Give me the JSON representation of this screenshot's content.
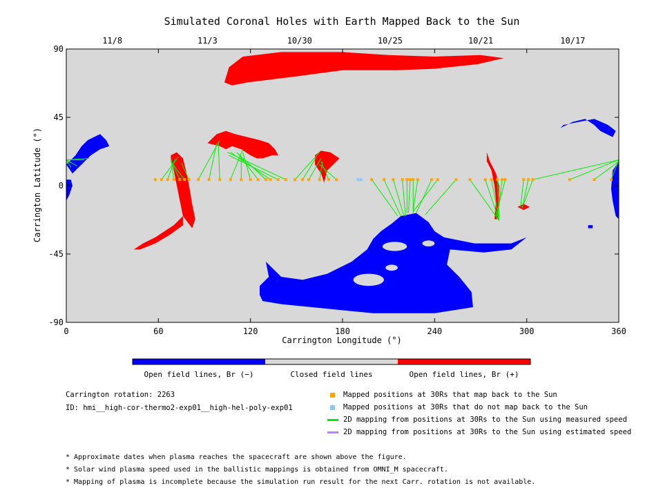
{
  "chart_data": {
    "type": "map",
    "title": "Simulated Coronal Holes with Earth Mapped Back to the Sun",
    "xlabel": "Carrington Longitude (°)",
    "ylabel": "Carrington Latitude (°)",
    "xlim": [
      0,
      360
    ],
    "ylim": [
      -90,
      90
    ],
    "x_ticks": [
      "0",
      "60",
      "120",
      "180",
      "240",
      "300",
      "360"
    ],
    "y_ticks": [
      "90",
      "45",
      "0",
      "-45",
      "-90"
    ],
    "top_dates": [
      {
        "lon": 30,
        "label": "11/8"
      },
      {
        "lon": 92,
        "label": "11/3"
      },
      {
        "lon": 152,
        "label": "10/30"
      },
      {
        "lon": 211,
        "label": "10/25"
      },
      {
        "lon": 270,
        "label": "10/21"
      },
      {
        "lon": 330,
        "label": "10/17"
      }
    ],
    "colorbar": [
      {
        "label": "Open field lines, Br (−)",
        "color": "#0000ff"
      },
      {
        "label": "Closed field lines",
        "color": "#d8d8d8"
      },
      {
        "label": "Open field lines, Br (+)",
        "color": "#ff0000"
      }
    ],
    "mapped_positions_30Rs": {
      "latitude": 4,
      "longitudes": [
        58,
        62,
        66,
        70,
        74,
        77,
        80,
        86,
        93,
        100,
        107,
        114,
        120,
        125,
        130,
        133,
        138,
        143,
        149,
        154,
        158,
        165,
        171,
        176,
        199,
        207,
        213,
        219,
        222,
        224,
        226,
        229,
        238,
        242,
        254,
        263,
        273,
        277,
        281,
        284,
        286,
        298,
        301,
        304,
        328,
        344,
        355
      ]
    },
    "unmapped_positions_30Rs": {
      "latitude": 4,
      "longitudes": [
        190,
        192
      ]
    },
    "mapping_lines": [
      [
        62,
        4,
        73,
        19
      ],
      [
        66,
        4,
        71,
        18
      ],
      [
        70,
        4,
        68,
        19
      ],
      [
        74,
        4,
        68,
        17
      ],
      [
        77,
        4,
        68,
        16
      ],
      [
        80,
        4,
        75,
        15
      ],
      [
        86,
        4,
        100,
        30
      ],
      [
        93,
        4,
        98,
        28
      ],
      [
        100,
        4,
        99,
        29
      ],
      [
        107,
        4,
        115,
        24
      ],
      [
        114,
        4,
        114,
        18
      ],
      [
        120,
        4,
        115,
        22
      ],
      [
        125,
        4,
        112,
        21
      ],
      [
        130,
        4,
        111,
        22
      ],
      [
        133,
        4,
        107,
        22
      ],
      [
        138,
        4,
        106,
        20
      ],
      [
        143,
        4,
        105,
        22
      ],
      [
        149,
        4,
        165,
        22
      ],
      [
        154,
        4,
        163,
        19
      ],
      [
        158,
        4,
        166,
        18
      ],
      [
        165,
        4,
        167,
        16
      ],
      [
        171,
        4,
        166,
        16
      ],
      [
        176,
        4,
        165,
        14
      ],
      [
        199,
        4,
        216,
        -20
      ],
      [
        207,
        4,
        218,
        -20
      ],
      [
        213,
        4,
        220,
        -20
      ],
      [
        219,
        4,
        221,
        -20
      ],
      [
        222,
        4,
        222,
        -18
      ],
      [
        224,
        4,
        223,
        -18
      ],
      [
        226,
        4,
        226,
        -18
      ],
      [
        229,
        4,
        226,
        -16
      ],
      [
        238,
        4,
        228,
        -18
      ],
      [
        242,
        4,
        226,
        -17
      ],
      [
        254,
        4,
        234,
        -19
      ],
      [
        263,
        4,
        282,
        -23
      ],
      [
        273,
        4,
        282,
        -23
      ],
      [
        277,
        4,
        282,
        -22
      ],
      [
        281,
        4,
        282,
        -21
      ],
      [
        284,
        4,
        281,
        -20
      ],
      [
        286,
        4,
        280,
        -20
      ],
      [
        298,
        4,
        296,
        -14
      ],
      [
        301,
        4,
        297,
        -15
      ],
      [
        304,
        4,
        298,
        -12
      ],
      [
        304,
        4,
        360,
        17
      ],
      [
        328,
        4,
        360,
        17
      ],
      [
        344,
        4,
        360,
        16
      ],
      [
        355,
        4,
        360,
        17
      ],
      [
        0,
        17,
        3,
        12
      ],
      [
        0,
        17,
        7,
        13
      ],
      [
        0,
        17,
        12,
        17
      ],
      [
        0,
        17,
        15,
        18
      ],
      [
        0,
        17,
        3,
        15
      ]
    ],
    "regions": [
      {
        "polarity": "positive",
        "color": "#ff0000",
        "name": "north polar hole",
        "points": [
          [
            103,
            68
          ],
          [
            106,
            78
          ],
          [
            115,
            85
          ],
          [
            140,
            88
          ],
          [
            180,
            88
          ],
          [
            210,
            86
          ],
          [
            240,
            85
          ],
          [
            270,
            86
          ],
          [
            285,
            84
          ],
          [
            268,
            80
          ],
          [
            240,
            77
          ],
          [
            215,
            76
          ],
          [
            180,
            76
          ],
          [
            150,
            72
          ],
          [
            118,
            68
          ],
          [
            108,
            66
          ]
        ]
      },
      {
        "polarity": "positive",
        "color": "#ff0000",
        "name": "hole near lon 100",
        "points": [
          [
            92,
            28
          ],
          [
            98,
            34
          ],
          [
            104,
            36
          ],
          [
            110,
            34
          ],
          [
            118,
            32
          ],
          [
            126,
            30
          ],
          [
            132,
            28
          ],
          [
            136,
            24
          ],
          [
            138,
            20
          ],
          [
            134,
            20
          ],
          [
            128,
            18
          ],
          [
            124,
            18
          ],
          [
            120,
            20
          ],
          [
            114,
            24
          ],
          [
            108,
            26
          ],
          [
            104,
            24
          ],
          [
            100,
            26
          ]
        ]
      },
      {
        "polarity": "positive",
        "color": "#ff0000",
        "name": "hole near lon 70",
        "points": [
          [
            68,
            20
          ],
          [
            72,
            22
          ],
          [
            76,
            18
          ],
          [
            78,
            10
          ],
          [
            80,
            0
          ],
          [
            82,
            -12
          ],
          [
            84,
            -22
          ],
          [
            82,
            -28
          ],
          [
            76,
            -20
          ],
          [
            74,
            -10
          ],
          [
            72,
            0
          ],
          [
            70,
            10
          ]
        ]
      },
      {
        "polarity": "positive",
        "color": "#ff0000",
        "name": "southern streak",
        "points": [
          [
            76,
            -20
          ],
          [
            70,
            -26
          ],
          [
            58,
            -34
          ],
          [
            50,
            -38
          ],
          [
            44,
            -42
          ],
          [
            48,
            -42
          ],
          [
            58,
            -38
          ],
          [
            68,
            -32
          ],
          [
            76,
            -26
          ]
        ]
      },
      {
        "polarity": "positive",
        "color": "#ff0000",
        "name": "hole near lon 165",
        "points": [
          [
            162,
            20
          ],
          [
            166,
            23
          ],
          [
            172,
            22
          ],
          [
            178,
            18
          ],
          [
            174,
            14
          ],
          [
            170,
            10
          ],
          [
            168,
            2
          ],
          [
            166,
            8
          ],
          [
            162,
            14
          ]
        ]
      },
      {
        "polarity": "positive",
        "color": "#ff0000",
        "name": "hole near lon 280",
        "points": [
          [
            274,
            22
          ],
          [
            276,
            16
          ],
          [
            280,
            8
          ],
          [
            282,
            0
          ],
          [
            282,
            -10
          ],
          [
            281,
            -22
          ],
          [
            279,
            -22
          ],
          [
            280,
            -10
          ],
          [
            279,
            0
          ],
          [
            277,
            10
          ],
          [
            274,
            16
          ]
        ]
      },
      {
        "polarity": "positive",
        "color": "#ff0000",
        "name": "small patch lon 298",
        "points": [
          [
            294,
            -14
          ],
          [
            298,
            -12
          ],
          [
            302,
            -14
          ],
          [
            298,
            -16
          ]
        ]
      },
      {
        "polarity": "negative",
        "color": "#0000ff",
        "name": "southern polar hole",
        "points": [
          [
            200,
            -35
          ],
          [
            205,
            -30
          ],
          [
            212,
            -25
          ],
          [
            218,
            -20
          ],
          [
            228,
            -18
          ],
          [
            236,
            -24
          ],
          [
            240,
            -30
          ],
          [
            246,
            -34
          ],
          [
            266,
            -38
          ],
          [
            290,
            -38
          ],
          [
            300,
            -34
          ],
          [
            290,
            -42
          ],
          [
            272,
            -44
          ],
          [
            250,
            -42
          ],
          [
            248,
            -52
          ],
          [
            256,
            -60
          ],
          [
            264,
            -70
          ],
          [
            265,
            -80
          ],
          [
            240,
            -84
          ],
          [
            200,
            -84
          ],
          [
            160,
            -80
          ],
          [
            140,
            -78
          ],
          [
            128,
            -76
          ],
          [
            126,
            -72
          ],
          [
            126,
            -66
          ],
          [
            132,
            -60
          ],
          [
            130,
            -50
          ],
          [
            126,
            -46
          ],
          [
            132,
            -52
          ],
          [
            140,
            -60
          ],
          [
            154,
            -62
          ],
          [
            170,
            -58
          ],
          [
            186,
            -50
          ],
          [
            196,
            -42
          ]
        ]
      },
      {
        "polarity": "negative",
        "color": "#0000ff",
        "name": "western hole north",
        "points": [
          [
            0,
            14
          ],
          [
            6,
            20
          ],
          [
            10,
            26
          ],
          [
            14,
            30
          ],
          [
            18,
            32
          ],
          [
            22,
            34
          ],
          [
            26,
            30
          ],
          [
            28,
            26
          ],
          [
            22,
            24
          ],
          [
            16,
            20
          ],
          [
            10,
            14
          ],
          [
            4,
            8
          ]
        ]
      },
      {
        "polarity": "negative",
        "color": "#0000ff",
        "name": "western hole south",
        "points": [
          [
            0,
            4
          ],
          [
            3,
            4
          ],
          [
            4,
            0
          ],
          [
            2,
            -6
          ],
          [
            0,
            -10
          ]
        ]
      },
      {
        "polarity": "negative",
        "color": "#0000ff",
        "name": "eastern hole",
        "points": [
          [
            356,
            10
          ],
          [
            360,
            16
          ],
          [
            360,
            -22
          ],
          [
            358,
            -20
          ],
          [
            356,
            -10
          ],
          [
            355,
            -2
          ]
        ]
      },
      {
        "polarity": "negative",
        "color": "#0000ff",
        "name": "hole near lon 345",
        "points": [
          [
            322,
            38
          ],
          [
            330,
            42
          ],
          [
            338,
            44
          ],
          [
            344,
            40
          ],
          [
            348,
            36
          ],
          [
            356,
            32
          ],
          [
            358,
            36
          ],
          [
            353,
            40
          ],
          [
            344,
            44
          ],
          [
            334,
            42
          ],
          [
            324,
            40
          ]
        ]
      },
      {
        "polarity": "negative",
        "color": "#0000ff",
        "name": "tiny patch lon 340",
        "points": [
          [
            340,
            -26
          ],
          [
            343,
            -26
          ],
          [
            343,
            -28
          ],
          [
            340,
            -28
          ]
        ]
      }
    ],
    "closed_islands_in_south_hole": [
      {
        "cx": 197,
        "cy": -62,
        "rx": 10,
        "ry": 4
      },
      {
        "cx": 214,
        "cy": -40,
        "rx": 8,
        "ry": 3
      },
      {
        "cx": 236,
        "cy": -38,
        "rx": 4,
        "ry": 2
      },
      {
        "cx": 212,
        "cy": -54,
        "rx": 4,
        "ry": 2
      }
    ]
  },
  "info": {
    "carrington_rotation": "Carrington rotation: 2263",
    "id": "ID: hmi__high-cor-thermo2-exp01__high-hel-poly-exp01"
  },
  "legend": [
    {
      "label": "Mapped positions at 30Rs that map back to the Sun",
      "color": "#ffa500",
      "kind": "square",
      "icon": "orange-square"
    },
    {
      "label": "Mapped positions at 30Rs that do not map back to the Sun",
      "color": "#88c8ff",
      "kind": "square",
      "icon": "light-blue-square"
    },
    {
      "label": "2D mapping from positions at 30Rs to the Sun using measured speed",
      "color": "#00ee00",
      "kind": "line",
      "icon": "green-line"
    },
    {
      "label": "2D mapping from positions at 30Rs to the Sun using estimated speed",
      "color": "#c080ff",
      "kind": "line",
      "icon": "purple-line"
    }
  ],
  "notes": [
    "* Approximate dates when plasma reaches the spacecraft are shown above the figure.",
    "* Solar wind plasma speed used in the ballistic mappings is obtained from OMNI_M spacecraft.",
    "* Mapping of plasma is incomplete because the simulation run result for the next Carr. rotation is not available."
  ]
}
